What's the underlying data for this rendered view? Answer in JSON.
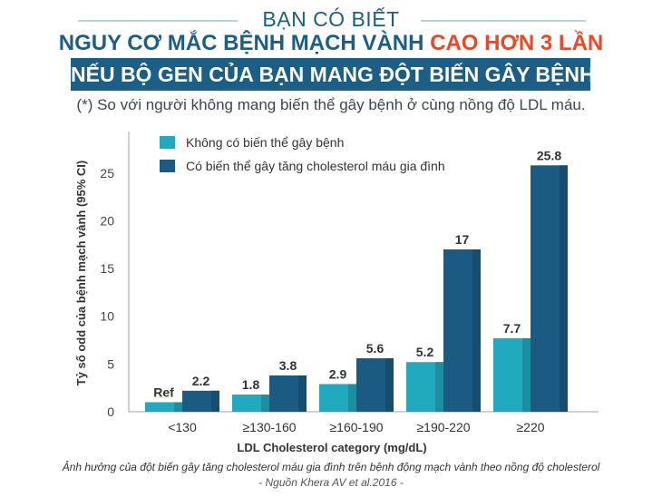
{
  "header": {
    "kicker": "BẠN CÓ BIẾT",
    "headline_main": "NGUY CƠ MẮC BỆNH MẠCH VÀNH ",
    "headline_highlight": "CAO HƠN 3 LẦN",
    "banner": "NẾU BỘ GEN CỦA BẠN MANG ĐỘT BIẾN GÂY BỆNH*",
    "footnote": "(*) So với người không mang biến thể gây bệnh ở cùng nồng độ LDL máu."
  },
  "colors": {
    "navy": "#1b5f86",
    "highlight": "#ef4723",
    "series_1": "#21a9bd",
    "series_2": "#1a5a83",
    "rule": "#b9d4df"
  },
  "chart_data": {
    "type": "bar",
    "categories": [
      "<130",
      "≥130-160",
      "≥160-190",
      "≥190-220",
      "≥220"
    ],
    "series": [
      {
        "name": "Không có biến thể gây bệnh",
        "values": [
          1,
          1.8,
          2.9,
          5.2,
          7.7
        ],
        "labels": [
          "Ref",
          "1.8",
          "2.9",
          "5.2",
          "7.7"
        ]
      },
      {
        "name": "Có biến thể gây tăng cholesterol máu gia đình",
        "values": [
          2.2,
          3.8,
          5.6,
          17,
          25.8
        ],
        "labels": [
          "2.2",
          "3.8",
          "5.6",
          "17",
          "25.8"
        ]
      }
    ],
    "xlabel": "LDL Cholesterol category (mg/dL)",
    "ylabel": "Tỷ số odd của bệnh mạch vành (95% CI)",
    "yticks": [
      0,
      5,
      10,
      15,
      20,
      25
    ],
    "ylim": [
      0,
      27
    ],
    "legend": "top-left",
    "grid": false
  },
  "caption": "Ảnh hưởng của đột biến gây tăng cholesterol máu gia đình trên bệnh động mạch vành theo nồng độ cholesterol",
  "source": "- Nguồn Khera AV et al.2016 -"
}
